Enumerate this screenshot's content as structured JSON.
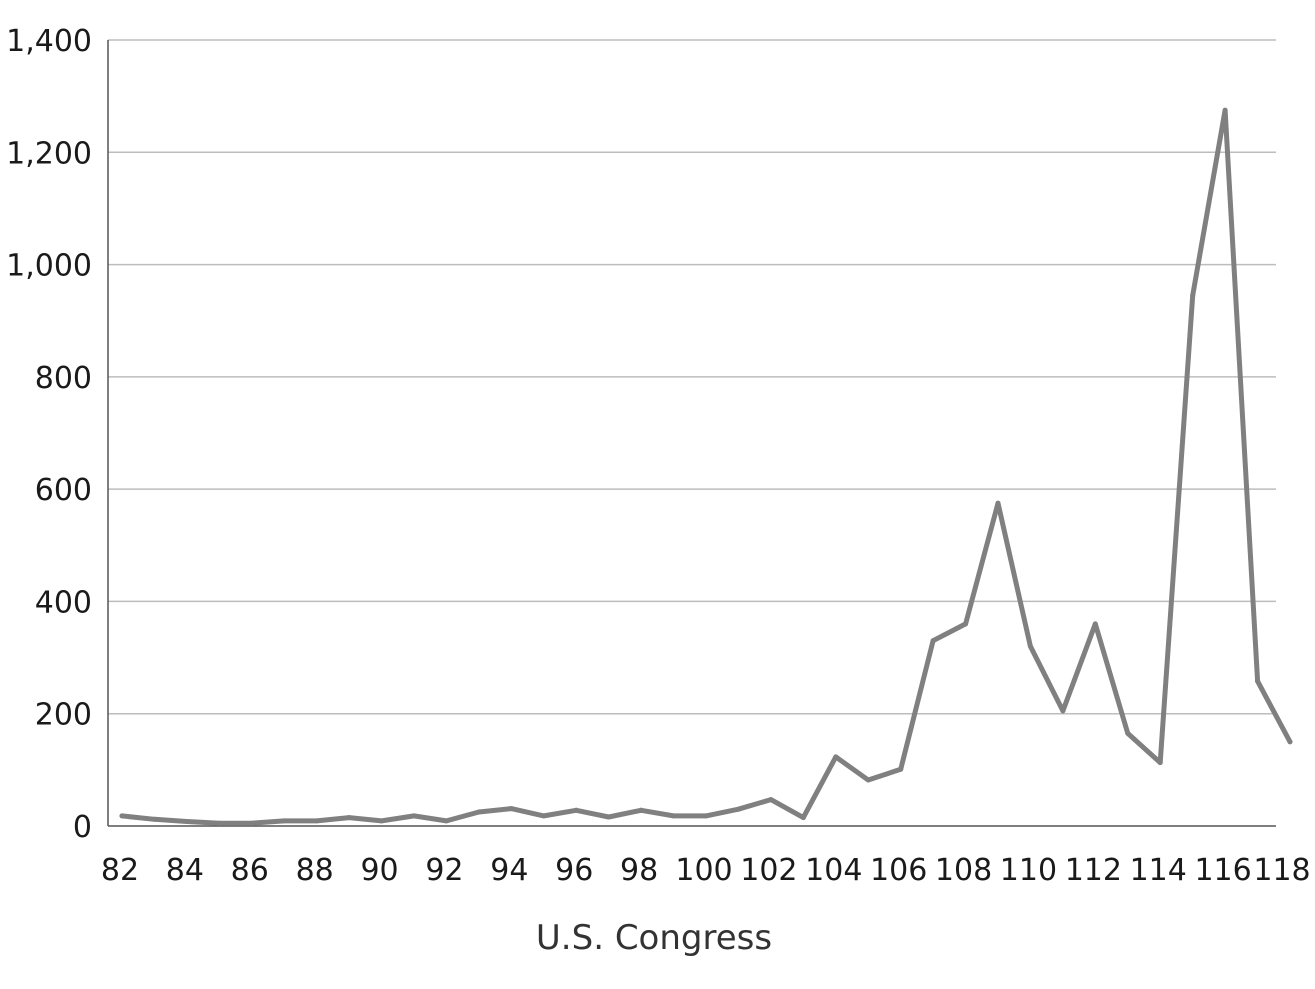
{
  "chart_data": {
    "type": "line",
    "title": "",
    "xlabel": "U.S. Congress",
    "ylabel": "",
    "xlim": [
      82,
      118
    ],
    "ylim": [
      0,
      1400
    ],
    "x_ticks": [
      "82",
      "84",
      "86",
      "88",
      "90",
      "92",
      "94",
      "96",
      "98",
      "100",
      "102",
      "104",
      "106",
      "108",
      "110",
      "112",
      "114",
      "116",
      "118"
    ],
    "y_ticks": [
      "0",
      "200",
      "400",
      "600",
      "800",
      "1,000",
      "1,200",
      "1,400"
    ],
    "grid": "horizontal",
    "legend": "none",
    "series": [
      {
        "color": "#808080",
        "x": [
          82,
          83,
          84,
          85,
          86,
          87,
          88,
          89,
          90,
          91,
          92,
          93,
          94,
          95,
          96,
          97,
          98,
          99,
          100,
          101,
          102,
          103,
          104,
          105,
          106,
          107,
          108,
          109,
          110,
          111,
          112,
          113,
          114,
          115,
          116,
          117,
          118
        ],
        "values": [
          18,
          12,
          8,
          5,
          5,
          9,
          9,
          15,
          9,
          18,
          9,
          25,
          31,
          18,
          28,
          16,
          28,
          18,
          18,
          30,
          47,
          15,
          123,
          82,
          101,
          330,
          360,
          575,
          320,
          205,
          360,
          165,
          113,
          945,
          1275,
          258,
          150
        ]
      }
    ]
  }
}
